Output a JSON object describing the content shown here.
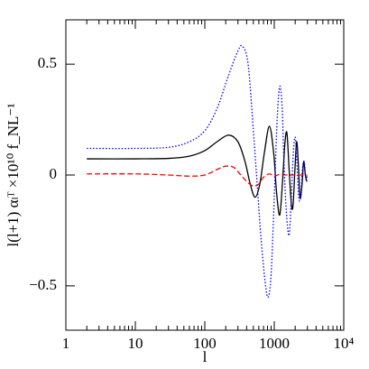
{
  "chart_data": {
    "type": "line",
    "x_label": "l",
    "y_label": "l(l+1)  αₗᵀ ×10¹⁰ f_NL⁻¹",
    "xlog": true,
    "xlim": [
      1,
      10000
    ],
    "xticks": [
      1,
      10,
      100,
      1000,
      {
        "value": 10000,
        "label": "10⁴"
      }
    ],
    "ylim": [
      -0.7,
      0.7
    ],
    "yticks": [
      {
        "value": -0.5,
        "label": "−0.5"
      },
      0,
      0.5
    ],
    "series": [
      {
        "color": "#000000",
        "dash": "solid",
        "x": [
          2,
          10,
          30,
          60,
          100,
          150,
          220,
          300,
          380,
          450,
          530,
          620,
          720,
          850,
          980,
          1080,
          1200,
          1320,
          1420,
          1520,
          1640,
          1760,
          1860,
          1980,
          2100,
          2220,
          2350,
          2500,
          2650,
          2800,
          2950
        ],
        "values": [
          0.073,
          0.073,
          0.075,
          0.085,
          0.11,
          0.15,
          0.18,
          0.15,
          0.06,
          -0.04,
          -0.1,
          -0.04,
          0.1,
          0.22,
          0.1,
          -0.08,
          -0.18,
          -0.02,
          0.14,
          0.19,
          0.02,
          -0.13,
          -0.14,
          0.02,
          0.15,
          0.05,
          -0.1,
          -0.05,
          0.06,
          0.0,
          -0.03
        ]
      },
      {
        "color": "#ff0000",
        "dash": "dashed",
        "x": [
          2,
          10,
          30,
          60,
          100,
          150,
          200,
          260,
          330,
          420,
          500,
          600,
          700,
          850,
          1000,
          1200,
          1500,
          2000,
          3000
        ],
        "values": [
          0.005,
          0.005,
          0.0,
          -0.005,
          0.0,
          0.025,
          0.04,
          0.035,
          0.0,
          -0.035,
          -0.05,
          -0.04,
          -0.01,
          0.005,
          -0.005,
          0.003,
          0.0,
          0.0,
          0.0
        ]
      },
      {
        "color": "#0000ff",
        "dash": "dotted",
        "x": [
          2,
          10,
          30,
          60,
          100,
          150,
          220,
          300,
          350,
          420,
          500,
          570,
          650,
          750,
          820,
          900,
          1000,
          1100,
          1200,
          1300,
          1400,
          1520,
          1640,
          1760,
          1880,
          2000,
          2120,
          2250,
          2400,
          2550,
          2700,
          2850,
          3000
        ],
        "values": [
          0.12,
          0.12,
          0.125,
          0.15,
          0.2,
          0.3,
          0.45,
          0.56,
          0.58,
          0.5,
          0.2,
          -0.05,
          -0.3,
          -0.5,
          -0.55,
          -0.45,
          -0.1,
          0.25,
          0.4,
          0.3,
          0.0,
          -0.2,
          -0.27,
          -0.1,
          0.1,
          0.17,
          0.05,
          -0.1,
          -0.1,
          0.03,
          0.06,
          -0.02,
          0.0
        ]
      }
    ]
  }
}
